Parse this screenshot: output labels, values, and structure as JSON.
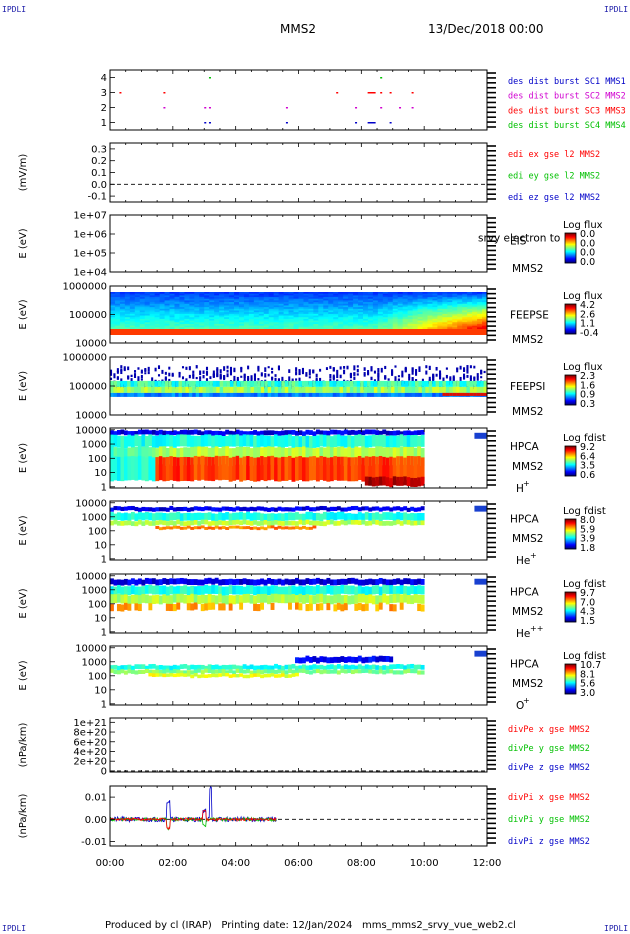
{
  "corner_label": "IPDLI",
  "header": {
    "spacecraft": "MMS2",
    "date": "13/Dec/2018 00:00"
  },
  "footer": {
    "produced_by": "Produced by cl (IRAP)",
    "printing_date": "Printing date: 12/Jan/2024",
    "file": "mms_mms2_srvy_vue_web2.cl"
  },
  "colors": {
    "red": "#ff0000",
    "green": "#00c000",
    "blue": "#0000c8",
    "magenta": "#d000d0"
  },
  "chart_data": [
    {
      "type": "scatter",
      "id": "burst",
      "y_ticks": [
        "4",
        "3",
        "2",
        "1"
      ],
      "ylim": [
        0.5,
        4.5
      ],
      "labels": [
        {
          "text": "des dist burst SC1 MMS1",
          "color": "#0000c8"
        },
        {
          "text": "des dist burst SC2 MMS2",
          "color": "#d000d0"
        },
        {
          "text": "des dist burst SC3 MMS3",
          "color": "#ff0000"
        },
        {
          "text": "des dist burst SC4 MMS4",
          "color": "#00c000"
        }
      ]
    },
    {
      "type": "line",
      "id": "edi",
      "ylabel": "(mV/m)",
      "y_ticks": [
        "0.3",
        "0.2",
        "0.1",
        "0.0",
        "-0.1"
      ],
      "ylim": [
        -0.15,
        0.35
      ],
      "labels": [
        {
          "text": "edi ex gse l2 MMS2",
          "color": "#ff0000"
        },
        {
          "text": "edi ey gse l2 MMS2",
          "color": "#00c000"
        },
        {
          "text": "edi ez gse l2 MMS2",
          "color": "#0000c8"
        }
      ]
    },
    {
      "type": "heatmap",
      "id": "eis",
      "ylabel": "E (eV)",
      "y_ticks": [
        "1e+07",
        "1e+06",
        "1e+05",
        "1e+04"
      ],
      "scale": "log",
      "instrument": "EIS",
      "craft": "MMS2",
      "extra": "srvy electron to",
      "cbar_title": "Log flux",
      "cbar_ticks": [
        "0.0",
        "0.0",
        "0.0",
        "0.0"
      ]
    },
    {
      "type": "heatmap",
      "id": "feepse",
      "ylabel": "E (eV)",
      "y_ticks": [
        "1000000",
        "100000",
        "10000"
      ],
      "scale": "log",
      "instrument": "FEEPSE",
      "craft": "MMS2",
      "cbar_title": "Log flux",
      "cbar_ticks": [
        "4.2",
        "2.6",
        "1.1",
        "-0.4"
      ]
    },
    {
      "type": "heatmap",
      "id": "feepsi",
      "ylabel": "E (eV)",
      "y_ticks": [
        "1000000",
        "100000",
        "10000"
      ],
      "scale": "log",
      "instrument": "FEEPSI",
      "craft": "MMS2",
      "cbar_title": "Log flux",
      "cbar_ticks": [
        "2.3",
        "1.6",
        "0.9",
        "0.3"
      ]
    },
    {
      "type": "heatmap",
      "id": "hpca_h",
      "ylabel": "E (eV)",
      "y_ticks": [
        "10000",
        "1000",
        "100",
        "10",
        "1"
      ],
      "scale": "log",
      "instrument": "HPCA",
      "craft": "MMS2",
      "species": "H",
      "charge": "+",
      "cbar_title": "Log fdist",
      "cbar_ticks": [
        "9.2",
        "6.4",
        "3.5",
        "0.6"
      ]
    },
    {
      "type": "heatmap",
      "id": "hpca_he",
      "ylabel": "E (eV)",
      "y_ticks": [
        "10000",
        "1000",
        "100",
        "10",
        "1"
      ],
      "scale": "log",
      "instrument": "HPCA",
      "craft": "MMS2",
      "species": "He",
      "charge": "+",
      "cbar_title": "Log fdist",
      "cbar_ticks": [
        "8.0",
        "5.9",
        "3.9",
        "1.8"
      ]
    },
    {
      "type": "heatmap",
      "id": "hpca_hepp",
      "ylabel": "E (eV)",
      "y_ticks": [
        "10000",
        "1000",
        "100",
        "10",
        "1"
      ],
      "scale": "log",
      "instrument": "HPCA",
      "craft": "MMS2",
      "species": "He",
      "charge": "++",
      "cbar_title": "Log fdist",
      "cbar_ticks": [
        "9.7",
        "7.0",
        "4.3",
        "1.5"
      ]
    },
    {
      "type": "heatmap",
      "id": "hpca_o",
      "ylabel": "E (eV)",
      "y_ticks": [
        "10000",
        "1000",
        "100",
        "10",
        "1"
      ],
      "scale": "log",
      "instrument": "HPCA",
      "craft": "MMS2",
      "species": "O",
      "charge": "+",
      "cbar_title": "Log fdist",
      "cbar_ticks": [
        "10.7",
        "8.1",
        "5.6",
        "3.0"
      ]
    },
    {
      "type": "line",
      "id": "divpe",
      "ylabel": "(nPa/km)",
      "y_ticks": [
        "1e+21",
        "8e+20",
        "6e+20",
        "4e+20",
        "2e+20",
        "0"
      ],
      "labels": [
        {
          "text": "divPe x gse MMS2",
          "color": "#ff0000"
        },
        {
          "text": "divPe y gse MMS2",
          "color": "#00c000"
        },
        {
          "text": "divPe z gse MMS2",
          "color": "#0000c8"
        }
      ]
    },
    {
      "type": "line",
      "id": "divpi",
      "ylabel": "(nPa/km)",
      "y_ticks": [
        "0.01",
        "0.00",
        "-0.01"
      ],
      "ylim": [
        -0.012,
        0.015
      ],
      "labels": [
        {
          "text": "divPi x gse MMS2",
          "color": "#ff0000"
        },
        {
          "text": "divPi y gse MMS2",
          "color": "#00c000"
        },
        {
          "text": "divPi z gse MMS2",
          "color": "#0000c8"
        }
      ]
    }
  ],
  "x_axis": {
    "ticks": [
      "00:00",
      "02:00",
      "04:00",
      "06:00",
      "08:00",
      "10:00",
      "12:00"
    ],
    "range_hours": [
      0,
      12
    ]
  }
}
